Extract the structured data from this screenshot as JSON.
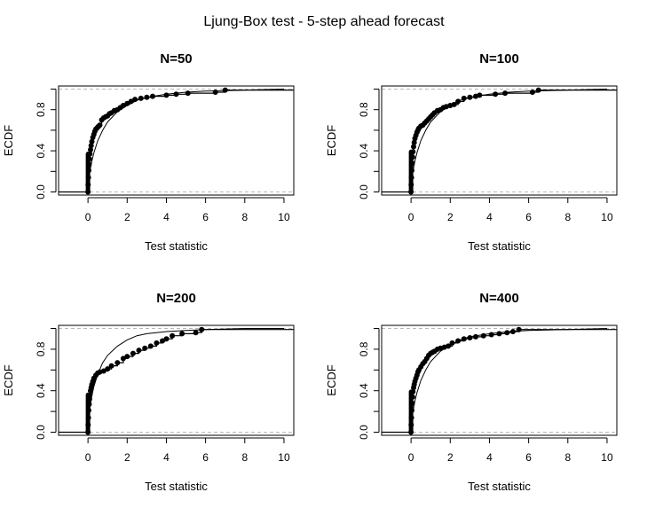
{
  "figure": {
    "title": "Ljung-Box test - 5-step ahead forecast"
  },
  "chart_data": [
    {
      "type": "scatter",
      "title": "N=50",
      "xlabel": "Test statistic",
      "ylabel": "ECDF",
      "xlim": [
        -1.5,
        10.5
      ],
      "ylim": [
        -0.03,
        1.03
      ],
      "xticks": [
        0,
        2,
        4,
        6,
        8,
        10
      ],
      "yticks": [
        0.0,
        0.4,
        0.8
      ],
      "reference_lines": [
        0,
        1
      ],
      "grid": false,
      "legend": "none",
      "ecdf_x": [
        0,
        0.01,
        0.02,
        0.04,
        0.06,
        0.08,
        0.1,
        0.13,
        0.16,
        0.2,
        0.25,
        0.3,
        0.35,
        0.4,
        0.45,
        0.5,
        0.55,
        0.6,
        0.7,
        0.8,
        0.9,
        1.0,
        1.1,
        1.2,
        1.35,
        1.5,
        1.65,
        1.8,
        2.0,
        2.2,
        2.4,
        2.7,
        3.0,
        3.3,
        4.0,
        4.5,
        5.1,
        6.5,
        7.0
      ],
      "ecdf_y": [
        0.0,
        0.07,
        0.14,
        0.21,
        0.27,
        0.32,
        0.37,
        0.41,
        0.45,
        0.49,
        0.53,
        0.56,
        0.59,
        0.61,
        0.62,
        0.63,
        0.64,
        0.65,
        0.7,
        0.72,
        0.73,
        0.74,
        0.76,
        0.77,
        0.79,
        0.8,
        0.82,
        0.84,
        0.86,
        0.88,
        0.9,
        0.91,
        0.92,
        0.93,
        0.94,
        0.95,
        0.96,
        0.97,
        0.99
      ],
      "reference_curve": [
        [
          0,
          0.0
        ],
        [
          0.05,
          0.13
        ],
        [
          0.1,
          0.2
        ],
        [
          0.2,
          0.3
        ],
        [
          0.3,
          0.38
        ],
        [
          0.5,
          0.5
        ],
        [
          0.75,
          0.6
        ],
        [
          1.0,
          0.68
        ],
        [
          1.5,
          0.78
        ],
        [
          2.0,
          0.84
        ],
        [
          2.5,
          0.89
        ],
        [
          3.0,
          0.92
        ],
        [
          4.0,
          0.95
        ],
        [
          5.0,
          0.97
        ],
        [
          6.0,
          0.98
        ],
        [
          8.0,
          0.99
        ],
        [
          10.0,
          1.0
        ]
      ]
    },
    {
      "type": "scatter",
      "title": "N=100",
      "xlabel": "Test statistic",
      "ylabel": "ECDF",
      "xlim": [
        -1.5,
        10.5
      ],
      "ylim": [
        -0.03,
        1.03
      ],
      "xticks": [
        0,
        2,
        4,
        6,
        8,
        10
      ],
      "yticks": [
        0.0,
        0.4,
        0.8
      ],
      "reference_lines": [
        0,
        1
      ],
      "grid": false,
      "legend": "none",
      "ecdf_x": [
        0,
        0.01,
        0.02,
        0.04,
        0.06,
        0.08,
        0.1,
        0.13,
        0.16,
        0.2,
        0.25,
        0.3,
        0.35,
        0.4,
        0.5,
        0.6,
        0.7,
        0.8,
        0.9,
        1.0,
        1.1,
        1.2,
        1.35,
        1.5,
        1.65,
        1.8,
        2.0,
        2.2,
        2.4,
        2.7,
        3.0,
        3.3,
        3.5,
        4.3,
        4.8,
        6.2,
        6.5
      ],
      "ecdf_y": [
        0.0,
        0.07,
        0.14,
        0.21,
        0.28,
        0.34,
        0.39,
        0.44,
        0.48,
        0.52,
        0.55,
        0.58,
        0.6,
        0.62,
        0.64,
        0.65,
        0.67,
        0.69,
        0.71,
        0.73,
        0.75,
        0.77,
        0.79,
        0.8,
        0.82,
        0.83,
        0.84,
        0.85,
        0.88,
        0.91,
        0.92,
        0.93,
        0.94,
        0.95,
        0.96,
        0.97,
        0.99
      ],
      "reference_curve": [
        [
          0,
          0.0
        ],
        [
          0.05,
          0.13
        ],
        [
          0.1,
          0.2
        ],
        [
          0.2,
          0.3
        ],
        [
          0.3,
          0.38
        ],
        [
          0.5,
          0.5
        ],
        [
          0.75,
          0.6
        ],
        [
          1.0,
          0.68
        ],
        [
          1.5,
          0.78
        ],
        [
          2.0,
          0.84
        ],
        [
          2.5,
          0.89
        ],
        [
          3.0,
          0.92
        ],
        [
          4.0,
          0.95
        ],
        [
          5.0,
          0.97
        ],
        [
          6.0,
          0.98
        ],
        [
          8.0,
          0.99
        ],
        [
          10.0,
          1.0
        ]
      ]
    },
    {
      "type": "scatter",
      "title": "N=200",
      "xlabel": "Test statistic",
      "ylabel": "ECDF",
      "xlim": [
        -1.5,
        10.5
      ],
      "ylim": [
        -0.03,
        1.03
      ],
      "xticks": [
        0,
        2,
        4,
        6,
        8,
        10
      ],
      "yticks": [
        0.0,
        0.4,
        0.8
      ],
      "reference_lines": [
        0,
        1
      ],
      "grid": false,
      "legend": "none",
      "ecdf_x": [
        0,
        0.01,
        0.02,
        0.04,
        0.06,
        0.08,
        0.1,
        0.13,
        0.16,
        0.2,
        0.25,
        0.3,
        0.4,
        0.5,
        0.6,
        0.8,
        1.0,
        1.2,
        1.5,
        1.8,
        2.0,
        2.3,
        2.6,
        2.9,
        3.2,
        3.5,
        3.8,
        4.0,
        4.3,
        4.8,
        5.5,
        5.8
      ],
      "ecdf_y": [
        0.0,
        0.07,
        0.14,
        0.21,
        0.27,
        0.32,
        0.36,
        0.4,
        0.43,
        0.46,
        0.49,
        0.52,
        0.55,
        0.57,
        0.58,
        0.59,
        0.61,
        0.64,
        0.67,
        0.71,
        0.73,
        0.76,
        0.79,
        0.81,
        0.83,
        0.86,
        0.88,
        0.9,
        0.93,
        0.95,
        0.96,
        0.99
      ],
      "reference_curve": [
        [
          0,
          0.0
        ],
        [
          0.05,
          0.15
        ],
        [
          0.1,
          0.23
        ],
        [
          0.2,
          0.35
        ],
        [
          0.3,
          0.44
        ],
        [
          0.5,
          0.56
        ],
        [
          0.75,
          0.67
        ],
        [
          1.0,
          0.74
        ],
        [
          1.5,
          0.83
        ],
        [
          2.0,
          0.89
        ],
        [
          2.5,
          0.93
        ],
        [
          3.0,
          0.95
        ],
        [
          4.0,
          0.97
        ],
        [
          5.0,
          0.98
        ],
        [
          6.0,
          0.99
        ],
        [
          8.0,
          1.0
        ],
        [
          10.0,
          1.0
        ]
      ]
    },
    {
      "type": "scatter",
      "title": "N=400",
      "xlabel": "Test statistic",
      "ylabel": "ECDF",
      "xlim": [
        -1.5,
        10.5
      ],
      "ylim": [
        -0.03,
        1.03
      ],
      "xticks": [
        0,
        2,
        4,
        6,
        8,
        10
      ],
      "yticks": [
        0.0,
        0.4,
        0.8
      ],
      "reference_lines": [
        0,
        1
      ],
      "grid": false,
      "legend": "none",
      "ecdf_x": [
        0,
        0.01,
        0.02,
        0.04,
        0.06,
        0.08,
        0.1,
        0.13,
        0.16,
        0.2,
        0.25,
        0.3,
        0.35,
        0.4,
        0.5,
        0.6,
        0.7,
        0.8,
        0.9,
        1.0,
        1.1,
        1.2,
        1.35,
        1.5,
        1.7,
        1.9,
        2.1,
        2.4,
        2.7,
        3.0,
        3.3,
        3.7,
        4.1,
        4.5,
        4.9,
        5.2,
        5.5
      ],
      "ecdf_y": [
        0.0,
        0.07,
        0.14,
        0.21,
        0.28,
        0.34,
        0.39,
        0.43,
        0.46,
        0.49,
        0.52,
        0.55,
        0.58,
        0.6,
        0.63,
        0.66,
        0.68,
        0.71,
        0.74,
        0.76,
        0.77,
        0.78,
        0.8,
        0.81,
        0.82,
        0.83,
        0.86,
        0.88,
        0.9,
        0.91,
        0.92,
        0.93,
        0.94,
        0.95,
        0.96,
        0.97,
        0.99
      ],
      "reference_curve": [
        [
          0,
          0.0
        ],
        [
          0.05,
          0.13
        ],
        [
          0.1,
          0.2
        ],
        [
          0.2,
          0.3
        ],
        [
          0.3,
          0.38
        ],
        [
          0.5,
          0.5
        ],
        [
          0.75,
          0.6
        ],
        [
          1.0,
          0.68
        ],
        [
          1.5,
          0.78
        ],
        [
          2.0,
          0.84
        ],
        [
          2.5,
          0.89
        ],
        [
          3.0,
          0.92
        ],
        [
          4.0,
          0.95
        ],
        [
          5.0,
          0.97
        ],
        [
          6.0,
          0.98
        ],
        [
          8.0,
          0.99
        ],
        [
          10.0,
          1.0
        ]
      ]
    }
  ]
}
